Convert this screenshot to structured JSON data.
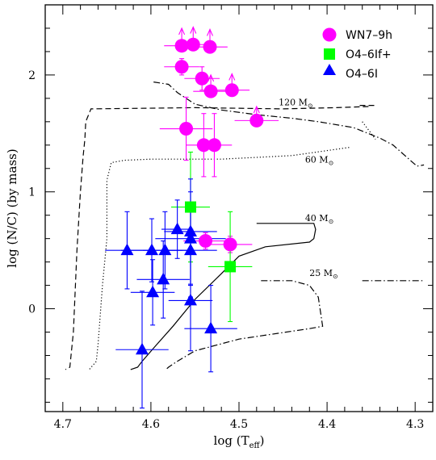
{
  "chart_data": {
    "type": "scatter",
    "xlabel": "log (T",
    "xlabel_sub": "eff",
    "xlabel_end": ")",
    "ylabel": "log (N/C) (by mass)",
    "xlim": [
      4.72,
      4.28
    ],
    "ylim": [
      -0.88,
      2.6
    ],
    "x_reversed": true,
    "xticks": [
      "4.7",
      "4.6",
      "4.5",
      "4.4",
      "4.3"
    ],
    "yticks": [
      "0",
      "1",
      "2"
    ],
    "legend": {
      "placement": "top-right",
      "entries": [
        {
          "label": "WN7–9h",
          "marker": "circle",
          "color": "#ff00ff"
        },
        {
          "label": "O4–6If+",
          "marker": "square",
          "color": "#00ff00"
        },
        {
          "label": "O4–6I",
          "marker": "triangle",
          "color": "#0000ff"
        }
      ]
    },
    "series": [
      {
        "name": "WN7–9h",
        "marker": "circle",
        "color": "#ff00ff",
        "points": [
          {
            "x": 4.565,
            "y": 2.25,
            "xerr": 0.02,
            "yerr_up": 0.15,
            "lower_limit": true
          },
          {
            "x": 4.552,
            "y": 2.26,
            "xerr": 0.02,
            "yerr_up": 0.15,
            "lower_limit": true
          },
          {
            "x": 4.533,
            "y": 2.24,
            "xerr": 0.02,
            "yerr_up": 0.15,
            "lower_limit": true
          },
          {
            "x": 4.565,
            "y": 2.07,
            "xerr": 0.02,
            "yerr": 0.07
          },
          {
            "x": 4.542,
            "y": 1.97,
            "xerr": 0.02,
            "yerr": 0.1
          },
          {
            "x": 4.532,
            "y": 1.86,
            "xerr": 0.02,
            "yerr_up": 0.14,
            "lower_limit": true
          },
          {
            "x": 4.508,
            "y": 1.87,
            "xerr": 0.02,
            "yerr_up": 0.14,
            "lower_limit": true
          },
          {
            "x": 4.48,
            "y": 1.61,
            "xerr": 0.025,
            "yerr_up": 0.12,
            "lower_limit": true
          },
          {
            "x": 4.56,
            "y": 1.54,
            "xerr": 0.03,
            "yerr": 0.27
          },
          {
            "x": 4.54,
            "y": 1.4,
            "xerr": 0.02,
            "yerr": 0.27
          },
          {
            "x": 4.528,
            "y": 1.4,
            "xerr": 0.02,
            "yerr": 0.27
          },
          {
            "x": 4.538,
            "y": 0.58,
            "xerr": 0.025,
            "yerr": 0.07
          },
          {
            "x": 4.51,
            "y": 0.55,
            "xerr": 0.025,
            "yerr": 0.07
          }
        ]
      },
      {
        "name": "O4–6If+",
        "marker": "square",
        "color": "#00ff00",
        "points": [
          {
            "x": 4.555,
            "y": 0.87,
            "xerr": 0.022,
            "yerr": 0.47
          },
          {
            "x": 4.51,
            "y": 0.36,
            "xerr": 0.025,
            "yerr": 0.47
          }
        ]
      },
      {
        "name": "O4–6I",
        "marker": "triangle",
        "color": "#0000ff",
        "points": [
          {
            "x": 4.57,
            "y": 0.68,
            "xerr": 0.018,
            "yerr": 0.25
          },
          {
            "x": 4.555,
            "y": 0.66,
            "xerr": 0.03,
            "yerr": 0.45
          },
          {
            "x": 4.555,
            "y": 0.6,
            "xerr": 0.04,
            "yerr": 0.4
          },
          {
            "x": 4.599,
            "y": 0.5,
            "xerr": 0.035,
            "yerr": 0.27
          },
          {
            "x": 4.627,
            "y": 0.5,
            "xerr": 0.025,
            "yerr": 0.33
          },
          {
            "x": 4.584,
            "y": 0.5,
            "xerr": 0.025,
            "yerr": 0.33
          },
          {
            "x": 4.555,
            "y": 0.5,
            "xerr": 0.03,
            "yerr": 0.4
          },
          {
            "x": 4.586,
            "y": 0.25,
            "xerr": 0.03,
            "yerr": 0.33
          },
          {
            "x": 4.598,
            "y": 0.14,
            "xerr": 0.025,
            "yerr": 0.28
          },
          {
            "x": 4.555,
            "y": 0.07,
            "xerr": 0.025,
            "yerr": 0.43
          },
          {
            "x": 4.532,
            "y": -0.17,
            "xerr": 0.03,
            "yerr": 0.37
          },
          {
            "x": 4.61,
            "y": -0.35,
            "xerr": 0.03,
            "yerr": 0.5
          }
        ]
      }
    ],
    "tracks": [
      {
        "label": "120 M",
        "label_sub": "⊙",
        "style": "dashed",
        "points": [
          [
            4.353,
            1.73
          ],
          [
            4.39,
            1.72
          ],
          [
            4.45,
            1.71
          ],
          [
            4.55,
            1.72
          ],
          [
            4.668,
            1.71
          ],
          [
            4.674,
            1.6
          ],
          [
            4.675,
            1.45
          ],
          [
            4.677,
            1.3
          ],
          [
            4.68,
            1.0
          ],
          [
            4.684,
            0.5
          ],
          [
            4.688,
            -0.2
          ],
          [
            4.692,
            -0.5
          ],
          [
            4.697,
            -0.52
          ]
        ]
      },
      {
        "label": "60 M",
        "label_sub": "⊙",
        "style": "dotted",
        "points": [
          [
            4.375,
            1.38
          ],
          [
            4.44,
            1.31
          ],
          [
            4.52,
            1.28
          ],
          [
            4.6,
            1.28
          ],
          [
            4.63,
            1.27
          ],
          [
            4.645,
            1.25
          ],
          [
            4.65,
            1.1
          ],
          [
            4.65,
            0.9
          ],
          [
            4.65,
            0.6
          ],
          [
            4.655,
            0.2
          ],
          [
            4.66,
            -0.3
          ],
          [
            4.662,
            -0.45
          ],
          [
            4.67,
            -0.52
          ]
        ]
      },
      {
        "label": "40 M",
        "label_sub": "⊙",
        "style": "solid",
        "points": [
          [
            4.48,
            0.73
          ],
          [
            4.415,
            0.73
          ],
          [
            4.413,
            0.68
          ],
          [
            4.415,
            0.6
          ],
          [
            4.42,
            0.57
          ],
          [
            4.47,
            0.53
          ],
          [
            4.5,
            0.45
          ],
          [
            4.52,
            0.3
          ],
          [
            4.55,
            0.08
          ],
          [
            4.575,
            -0.15
          ],
          [
            4.595,
            -0.32
          ],
          [
            4.61,
            -0.45
          ],
          [
            4.615,
            -0.5
          ],
          [
            4.623,
            -0.52
          ]
        ]
      },
      {
        "label": "25 M",
        "label_sub": "⊙",
        "style": "dashdot",
        "points": [
          [
            4.475,
            0.24
          ],
          [
            4.44,
            0.24
          ],
          [
            4.42,
            0.2
          ],
          [
            4.41,
            0.1
          ],
          [
            4.405,
            -0.15
          ],
          [
            4.42,
            -0.17
          ],
          [
            4.5,
            -0.26
          ],
          [
            4.55,
            -0.36
          ],
          [
            4.57,
            -0.45
          ],
          [
            4.58,
            -0.5
          ],
          [
            4.583,
            -0.52
          ]
        ]
      },
      {
        "label": "",
        "style": "dashdot",
        "points": [
          [
            4.597,
            1.94
          ],
          [
            4.58,
            1.92
          ],
          [
            4.57,
            1.85
          ],
          [
            4.55,
            1.75
          ],
          [
            4.52,
            1.7
          ],
          [
            4.48,
            1.66
          ],
          [
            4.44,
            1.63
          ],
          [
            4.41,
            1.6
          ],
          [
            4.37,
            1.55
          ],
          [
            4.34,
            1.46
          ],
          [
            4.325,
            1.4
          ],
          [
            4.31,
            1.3
          ],
          [
            4.298,
            1.22
          ],
          [
            4.29,
            1.23
          ]
        ]
      },
      {
        "label": "",
        "style": "dashdot",
        "points": [
          [
            4.36,
            0.24
          ],
          [
            4.33,
            0.24
          ],
          [
            4.29,
            0.24
          ]
        ]
      },
      {
        "label": "",
        "style": "dashed",
        "points": [
          [
            4.363,
            1.74
          ],
          [
            4.345,
            1.74
          ]
        ]
      },
      {
        "label": "",
        "style": "dotted",
        "points": [
          [
            4.36,
            1.6
          ],
          [
            4.352,
            1.52
          ],
          [
            4.345,
            1.45
          ]
        ]
      }
    ]
  }
}
